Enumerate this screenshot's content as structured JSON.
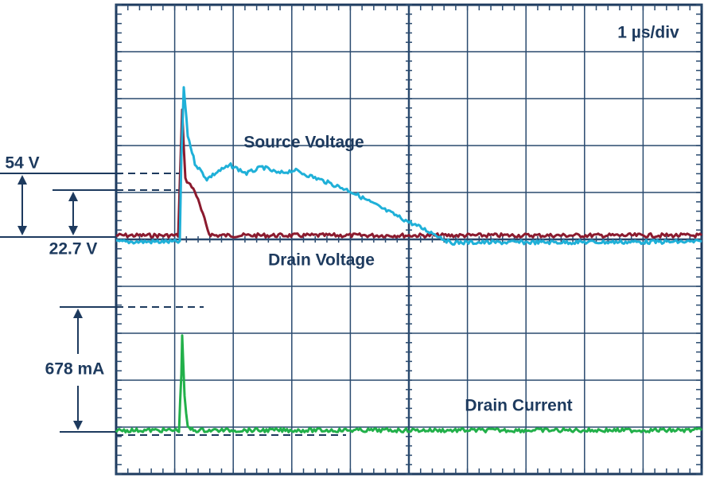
{
  "scope": {
    "timebase": "1 µs/div",
    "traces": [
      {
        "name": "Source Voltage",
        "color": "#1fb0d8"
      },
      {
        "name": "Drain Voltage",
        "color": "#8b1a2e"
      },
      {
        "name": "Drain Current",
        "color": "#22b04a"
      }
    ],
    "annotations": {
      "source_step": "54 V",
      "drain_step": "22.7 V",
      "current_peak": "678 mA"
    }
  }
}
